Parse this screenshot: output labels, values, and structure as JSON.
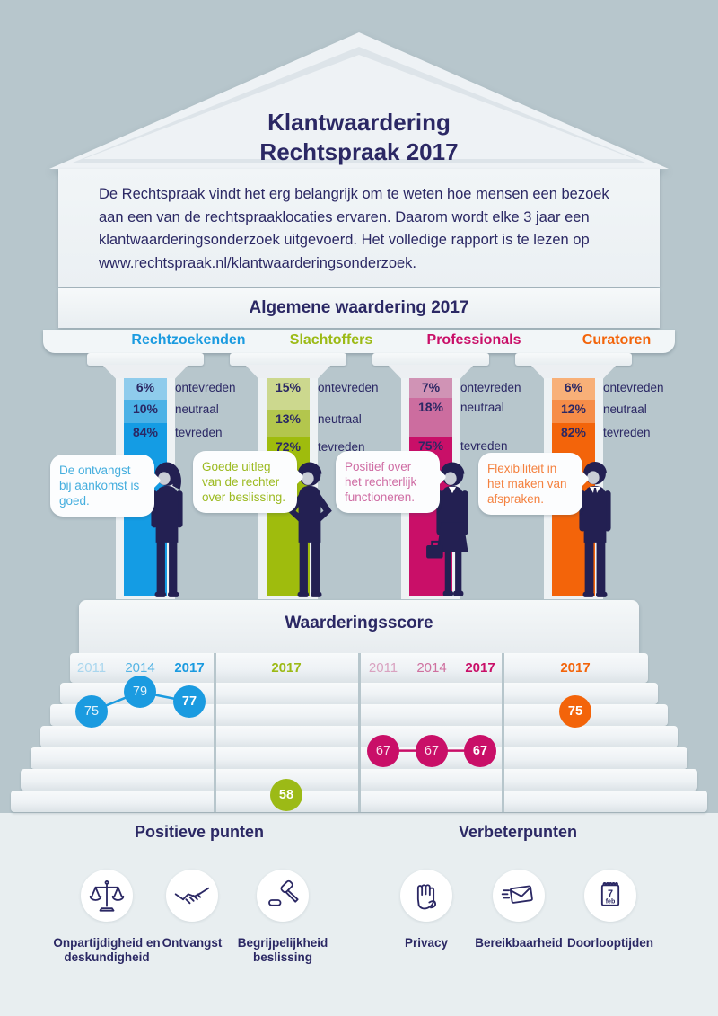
{
  "title": {
    "line1": "Klantwaardering",
    "line2": "Rechtspraak 2017"
  },
  "intro": {
    "text": "De Rechtspraak vindt het erg belangrijk om te weten hoe mensen een bezoek aan een van de rechtspraaklocaties ervaren. Daarom wordt elke 3 jaar een klantwaarderingsonderzoek uitgevoerd. Het volledige rapport is te lezen op www.rechtspraak.nl/klantwaarderingsonderzoek."
  },
  "sections": {
    "general_title": "Algemene waardering 2017",
    "score_title": "Waarderingsscore",
    "positive_title": "Positieve punten",
    "improve_title": "Verbeterpunten"
  },
  "colors": {
    "navy": "#2b2864",
    "bg_top": "#b7c6cc",
    "bg_bottom": "#e8eef0",
    "panel": "#eef2f5",
    "person_navy": "#232052",
    "person_face": "#c9cdd6"
  },
  "groups": [
    {
      "name": "Rechtzoekenden",
      "accent": "#1b9be0",
      "segment_colors": [
        "#8fccec",
        "#4cb2e6",
        "#149ce4"
      ],
      "segments": [
        {
          "value": "6%",
          "label": "ontevreden"
        },
        {
          "value": "10%",
          "label": "neutraal"
        },
        {
          "value": "84%",
          "label": "tevreden"
        }
      ],
      "quote": "De ontvangst bij aankomst is goed.",
      "quote_color": "#45aede",
      "years": [
        "2011",
        "2014",
        "2017"
      ],
      "year_colors": [
        "#a9d6ee",
        "#55b4e4",
        "#1b9be0"
      ],
      "scores": [
        75,
        79,
        77
      ],
      "person": "woman-ponytail"
    },
    {
      "name": "Slachtoffers",
      "accent": "#9cba16",
      "segment_colors": [
        "#ccd88e",
        "#b3c64d",
        "#9fbc0d"
      ],
      "segments": [
        {
          "value": "15%",
          "label": "ontevreden"
        },
        {
          "value": "13%",
          "label": "neutraal"
        },
        {
          "value": "72%",
          "label": "tevreden"
        }
      ],
      "quote": "Goede uitleg van de rechter over beslissing.",
      "quote_color": "#9cba21",
      "years": [
        "2017"
      ],
      "year_colors": [
        "#9cba16"
      ],
      "scores": [
        58
      ],
      "person": "hands-on-hips"
    },
    {
      "name": "Professionals",
      "accent": "#c90f68",
      "segment_colors": [
        "#d093b5",
        "#cc6d9f",
        "#c90f68"
      ],
      "segments": [
        {
          "value": "7%",
          "label": "ontevreden"
        },
        {
          "value": "18%",
          "label": "neutraal"
        },
        {
          "value": "75%",
          "label": "tevreden"
        }
      ],
      "quote": "Positief over het rechterlijk functioneren.",
      "quote_color": "#cf6da4",
      "years": [
        "2011",
        "2014",
        "2017"
      ],
      "year_colors": [
        "#d9a2c0",
        "#cf709f",
        "#c90f68"
      ],
      "scores": [
        67,
        67,
        67
      ],
      "person": "woman-briefcase"
    },
    {
      "name": "Curatoren",
      "accent": "#f3640a",
      "segment_colors": [
        "#f8b078",
        "#f68d48",
        "#f3640a"
      ],
      "segments": [
        {
          "value": "6%",
          "label": "ontevreden"
        },
        {
          "value": "12%",
          "label": "neutraal"
        },
        {
          "value": "82%",
          "label": "tevreden"
        }
      ],
      "quote": "Flexibiliteit in het maken van afspraken.",
      "quote_color": "#f4813f",
      "years": [
        "2017"
      ],
      "year_colors": [
        "#f3640a"
      ],
      "scores": [
        75
      ],
      "person": "man-suit"
    }
  ],
  "positive_items": [
    {
      "icon": "scales-icon",
      "label": "Onpartijdigheid en deskundigheid"
    },
    {
      "icon": "handshake-icon",
      "label": "Ontvangst"
    },
    {
      "icon": "gavel-icon",
      "label": "Begrijpelijkheid beslissing"
    }
  ],
  "improve_items": [
    {
      "icon": "hand-icon",
      "label": "Privacy"
    },
    {
      "icon": "envelope-icon",
      "label": "Bereikbaarheid"
    },
    {
      "icon": "calendar-icon",
      "label": "Doorlooptijden",
      "calendar_day": "7",
      "calendar_month": "feb"
    }
  ],
  "chart_data": [
    {
      "type": "bar",
      "title": "Algemene waardering 2017",
      "categories": [
        "Rechtzoekenden",
        "Slachtoffers",
        "Professionals",
        "Curatoren"
      ],
      "series": [
        {
          "name": "ontevreden",
          "values": [
            6,
            15,
            7,
            6
          ]
        },
        {
          "name": "neutraal",
          "values": [
            10,
            13,
            18,
            12
          ]
        },
        {
          "name": "tevreden",
          "values": [
            84,
            72,
            75,
            82
          ]
        }
      ],
      "unit": "%",
      "layout_hint": "stacked vertical columns styled as temple pillars"
    },
    {
      "type": "line",
      "title": "Waarderingsscore",
      "series": [
        {
          "name": "Rechtzoekenden",
          "x": [
            2011,
            2014,
            2017
          ],
          "values": [
            75,
            79,
            77
          ]
        },
        {
          "name": "Slachtoffers",
          "x": [
            2017
          ],
          "values": [
            58
          ]
        },
        {
          "name": "Professionals",
          "x": [
            2011,
            2014,
            2017
          ],
          "values": [
            67,
            67,
            67
          ]
        },
        {
          "name": "Curatoren",
          "x": [
            2017
          ],
          "values": [
            75
          ]
        }
      ],
      "layout_hint": "score circles placed on temple steps, higher score = higher step"
    }
  ]
}
